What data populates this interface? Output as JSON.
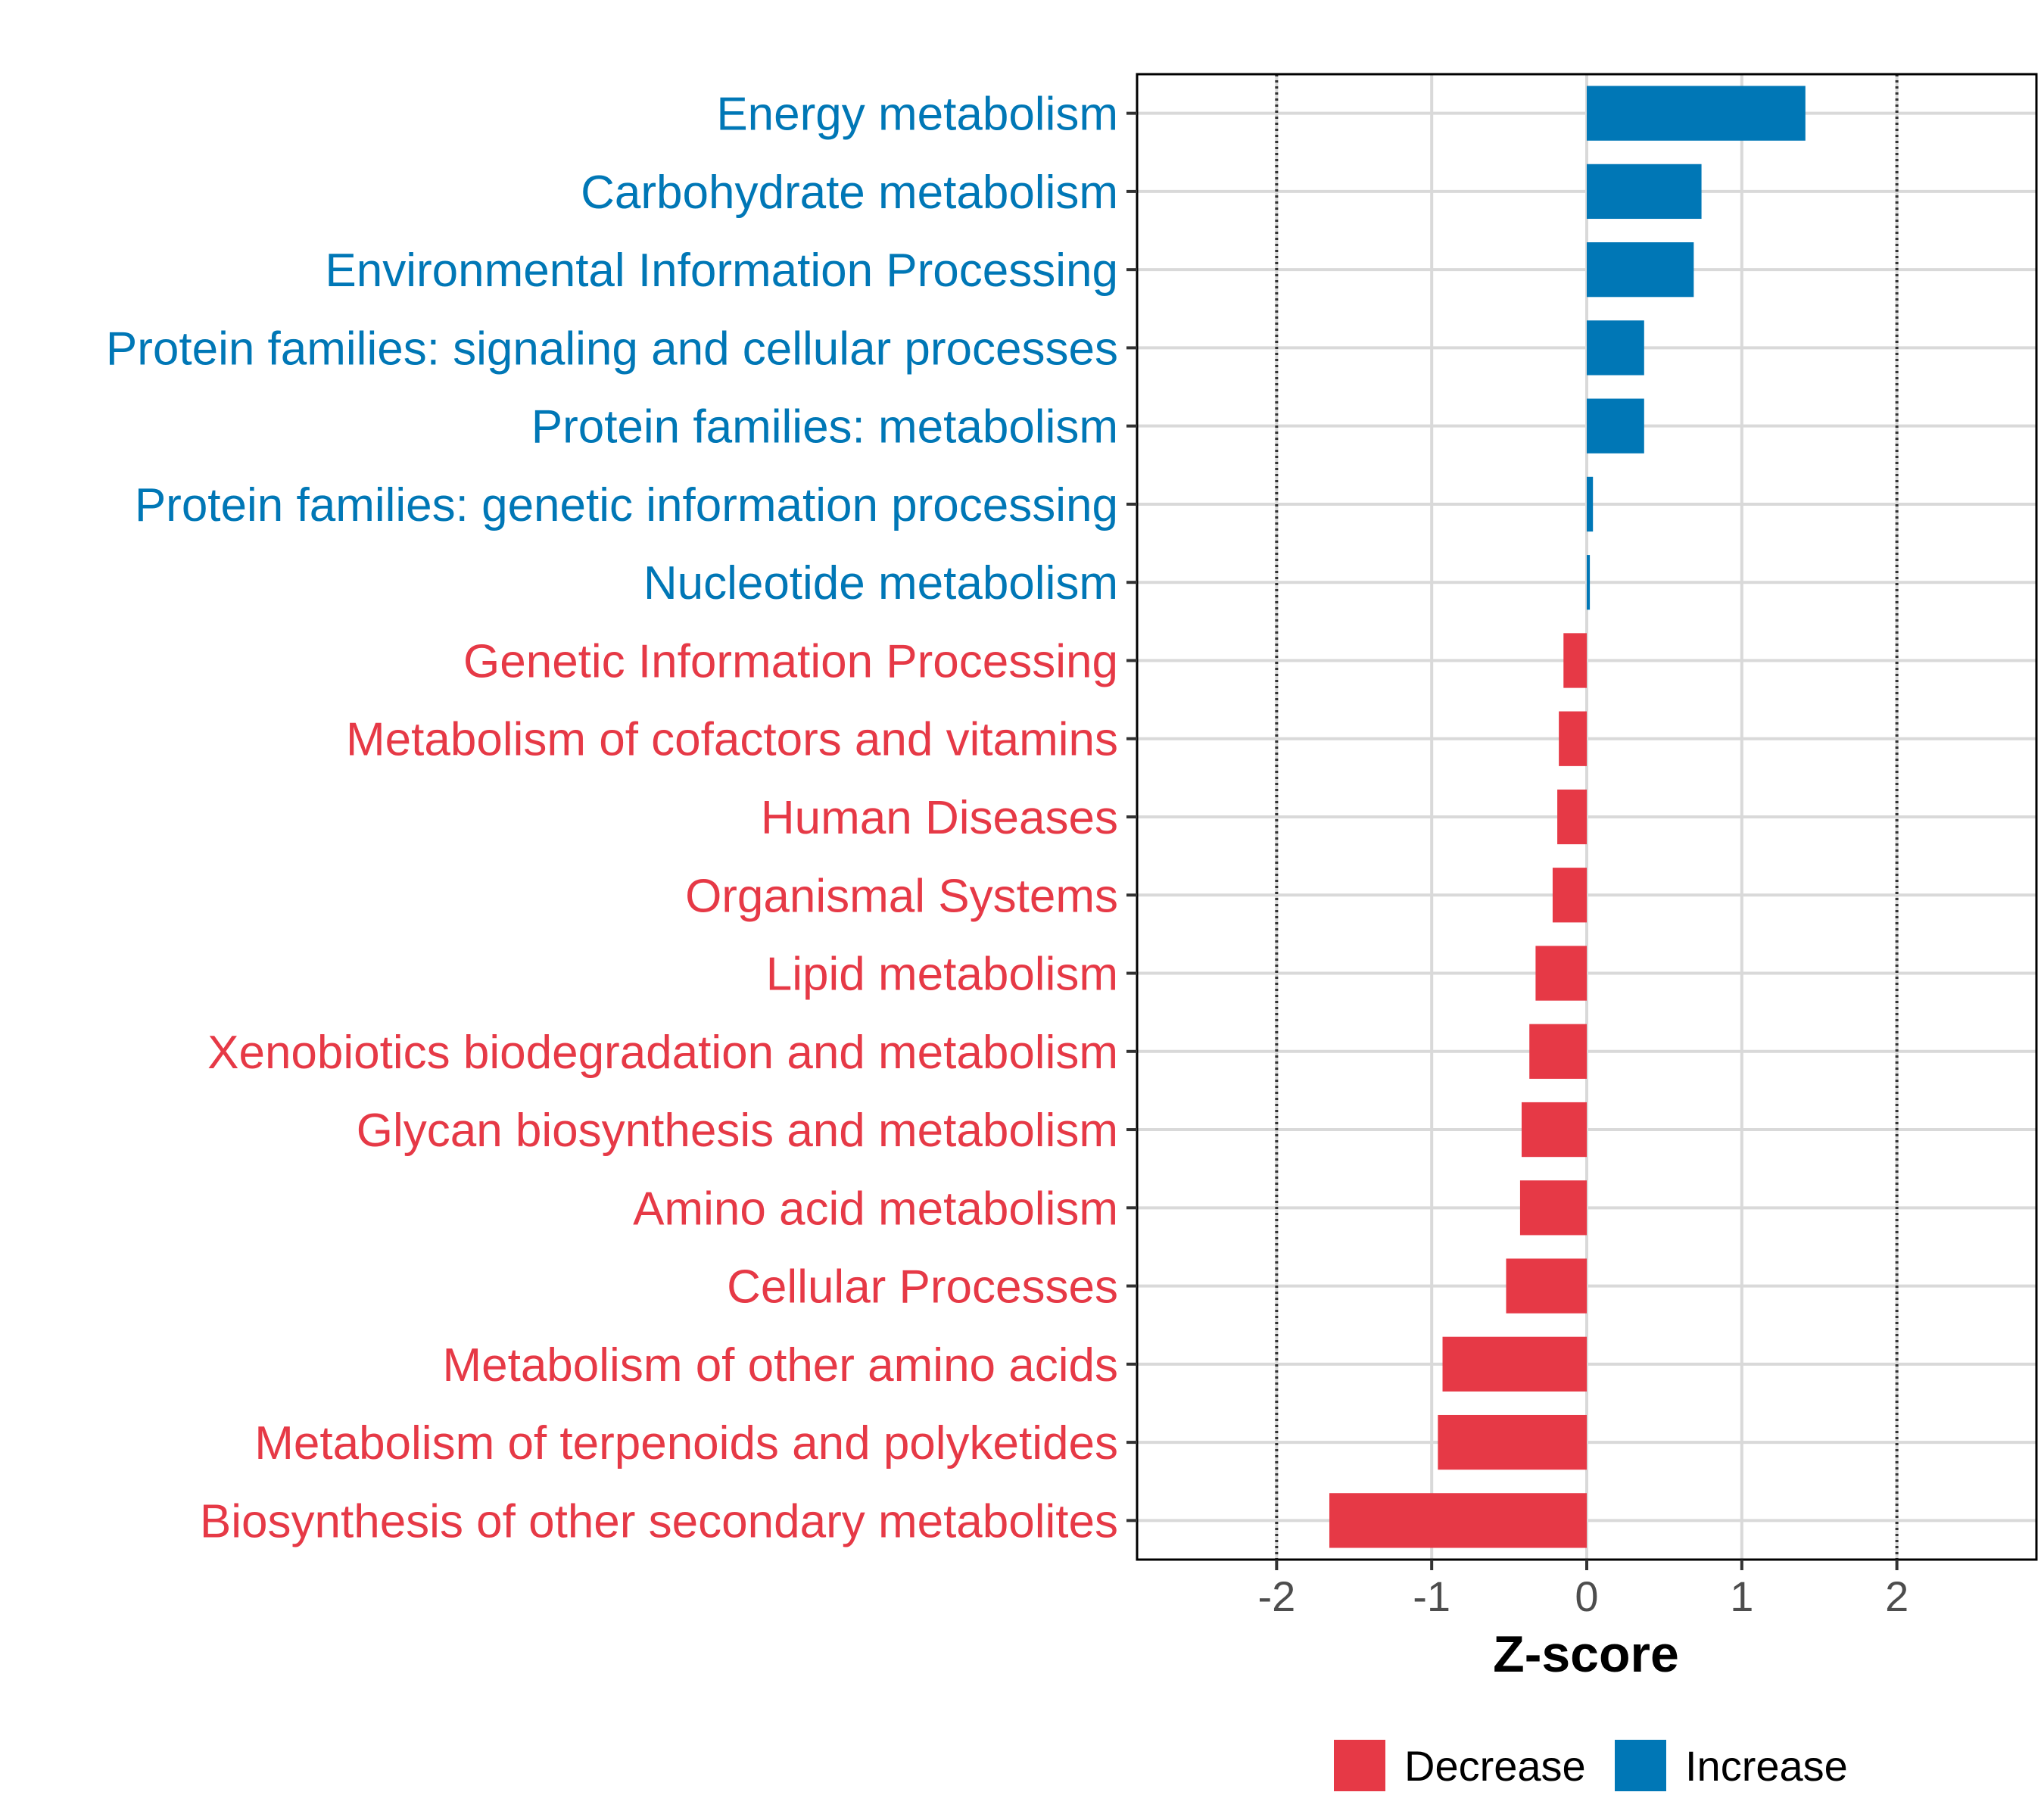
{
  "chart_data": {
    "type": "bar",
    "orientation": "horizontal",
    "title": "",
    "xlabel": "Z-score",
    "ylabel": "",
    "xlim": [
      -2.9,
      2.9
    ],
    "xticks": [
      -2,
      -1,
      0,
      1,
      2
    ],
    "xtick_labels": [
      "-2",
      "-1",
      "0",
      "1",
      "2"
    ],
    "reference_lines": [
      -2,
      2
    ],
    "grid": true,
    "categories": [
      "Energy metabolism",
      "Carbohydrate metabolism",
      "Environmental Information Processing",
      "Protein families: signaling and cellular processes",
      "Protein families: metabolism",
      "Protein families: genetic information processing",
      "Nucleotide metabolism",
      "Genetic Information Processing",
      "Metabolism of cofactors and vitamins",
      "Human Diseases",
      "Organismal Systems",
      "Lipid metabolism",
      "Xenobiotics biodegradation and metabolism",
      "Glycan biosynthesis and metabolism",
      "Amino acid metabolism",
      "Cellular Processes",
      "Metabolism of other amino acids",
      "Metabolism of terpenoids and polyketides",
      "Biosynthesis of other secondary metabolites"
    ],
    "values": [
      1.41,
      0.74,
      0.69,
      0.37,
      0.37,
      0.04,
      0.02,
      -0.15,
      -0.18,
      -0.19,
      -0.22,
      -0.33,
      -0.37,
      -0.42,
      -0.43,
      -0.52,
      -0.93,
      -0.96,
      -1.66
    ],
    "groups": [
      "Increase",
      "Increase",
      "Increase",
      "Increase",
      "Increase",
      "Increase",
      "Increase",
      "Decrease",
      "Decrease",
      "Decrease",
      "Decrease",
      "Decrease",
      "Decrease",
      "Decrease",
      "Decrease",
      "Decrease",
      "Decrease",
      "Decrease",
      "Decrease"
    ],
    "legend": {
      "position": "bottom",
      "entries": [
        {
          "label": "Decrease",
          "color": "#E63946"
        },
        {
          "label": "Increase",
          "color": "#0077B6"
        }
      ]
    }
  },
  "colors": {
    "decrease": "#E63946",
    "increase": "#0077B6",
    "grid": "#D9D9D9",
    "reference_line": "#333333"
  }
}
